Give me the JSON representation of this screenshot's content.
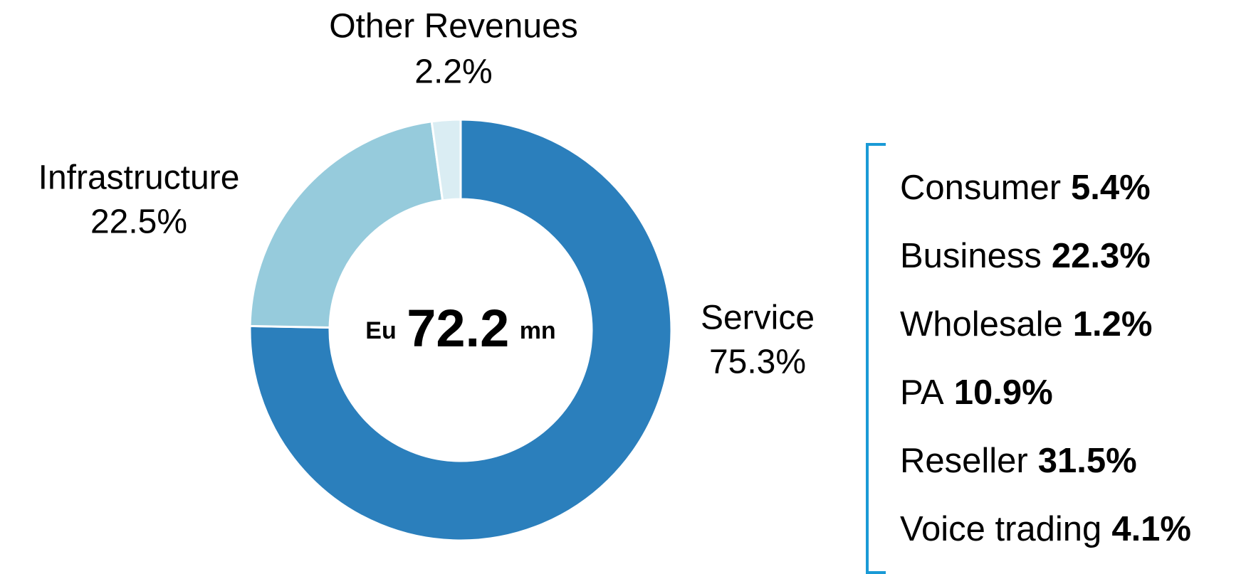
{
  "chart_data": {
    "type": "pie",
    "donut": true,
    "categories": [
      "Service",
      "Infrastructure",
      "Other Revenues"
    ],
    "values": [
      75.3,
      22.5,
      2.2
    ],
    "value_labels": [
      "75.3%",
      "22.5%",
      "2.2%"
    ],
    "colors": [
      "#2b7fbc",
      "#96cbdc",
      "#daedf3"
    ],
    "center_label": {
      "prefix": "Eu",
      "value": "72.2",
      "unit": "mn"
    },
    "breakdown": {
      "categories": [
        "Consumer",
        "Business",
        "Wholesale",
        "PA",
        "Reseller",
        "Voice trading"
      ],
      "value_labels": [
        "5.4%",
        "22.3%",
        "1.2%",
        "10.9%",
        "31.5%",
        "4.1%"
      ]
    }
  }
}
